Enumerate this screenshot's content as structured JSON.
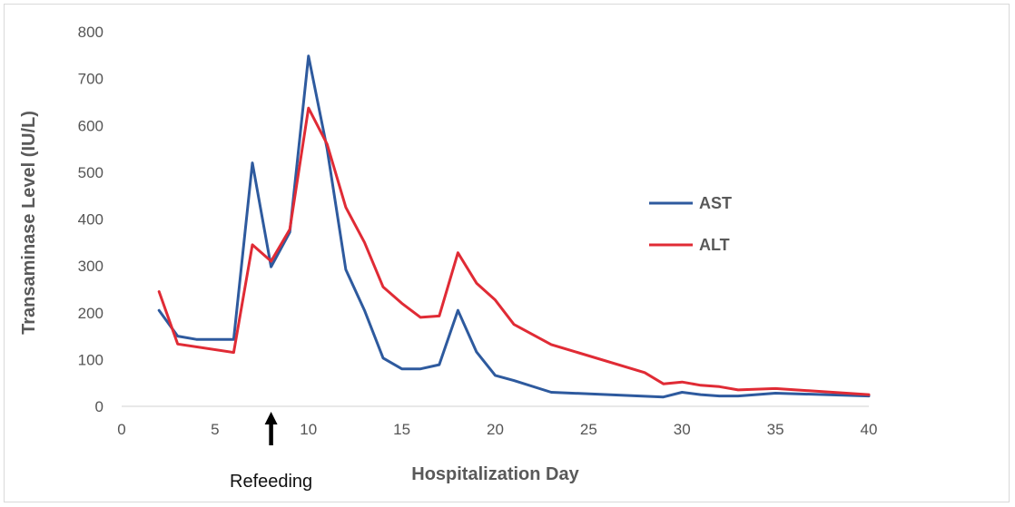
{
  "chart_data": {
    "type": "line",
    "title": "",
    "xlabel": "Hospitalization Day",
    "ylabel": "Transaminase Level (IU/L)",
    "xlim": [
      0,
      40
    ],
    "ylim": [
      0,
      800
    ],
    "xticks": [
      0,
      5,
      10,
      15,
      20,
      25,
      30,
      35,
      40
    ],
    "yticks": [
      0,
      100,
      200,
      300,
      400,
      500,
      600,
      700,
      800
    ],
    "grid": false,
    "legend_position": "right",
    "series": [
      {
        "name": "AST",
        "color": "#2e5a9e",
        "x": [
          2,
          3,
          4,
          5,
          6,
          7,
          8,
          9,
          10,
          11,
          12,
          13,
          14,
          15,
          16,
          17,
          18,
          19,
          20,
          21,
          23,
          29,
          30,
          31,
          32,
          33,
          35,
          40
        ],
        "y": [
          205,
          150,
          143,
          143,
          143,
          520,
          298,
          372,
          748,
          550,
          292,
          205,
          103,
          80,
          80,
          89,
          205,
          116,
          66,
          55,
          30,
          20,
          30,
          25,
          22,
          22,
          28,
          22
        ]
      },
      {
        "name": "ALT",
        "color": "#e02b35",
        "x": [
          2,
          3,
          6,
          7,
          8,
          9,
          10,
          11,
          12,
          13,
          14,
          15,
          16,
          17,
          18,
          19,
          20,
          21,
          23,
          28,
          29,
          30,
          31,
          32,
          33,
          35,
          40
        ],
        "y": [
          245,
          133,
          115,
          345,
          310,
          378,
          637,
          560,
          425,
          350,
          255,
          220,
          190,
          193,
          328,
          263,
          227,
          175,
          132,
          72,
          48,
          52,
          45,
          42,
          35,
          38,
          25
        ]
      }
    ],
    "annotations": [
      {
        "text": "Refeeding",
        "x": 8,
        "arrow": "up"
      }
    ]
  }
}
